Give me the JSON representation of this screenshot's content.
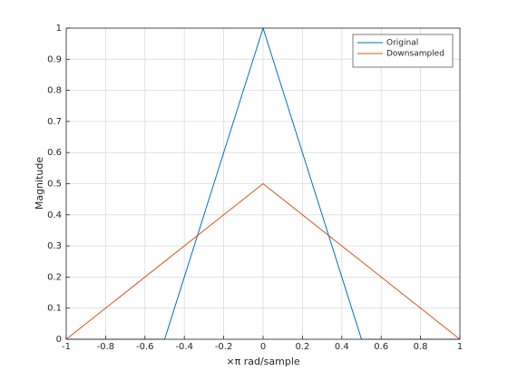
{
  "chart_data": {
    "type": "line",
    "xlabel": "×π rad/sample",
    "ylabel": "Magnitude",
    "series": [
      {
        "name": "Original",
        "color": "#0072bd",
        "x": [
          -1,
          -0.5,
          0,
          0.5,
          1
        ],
        "values": [
          0,
          0,
          1,
          0,
          0
        ]
      },
      {
        "name": "Downsampled",
        "color": "#d95319",
        "x": [
          -1,
          0,
          1
        ],
        "values": [
          0,
          0.5,
          0
        ]
      }
    ],
    "xlim": [
      -1,
      1
    ],
    "xticks": [
      -1,
      -0.8,
      -0.6,
      -0.4,
      -0.2,
      0,
      0.2,
      0.4,
      0.6,
      0.8,
      1
    ],
    "ylim": [
      0,
      1
    ],
    "yticks": [
      0,
      0.1,
      0.2,
      0.3,
      0.4,
      0.5,
      0.6,
      0.7,
      0.8,
      0.9,
      1
    ],
    "grid": true,
    "legend_position": "northeast"
  }
}
